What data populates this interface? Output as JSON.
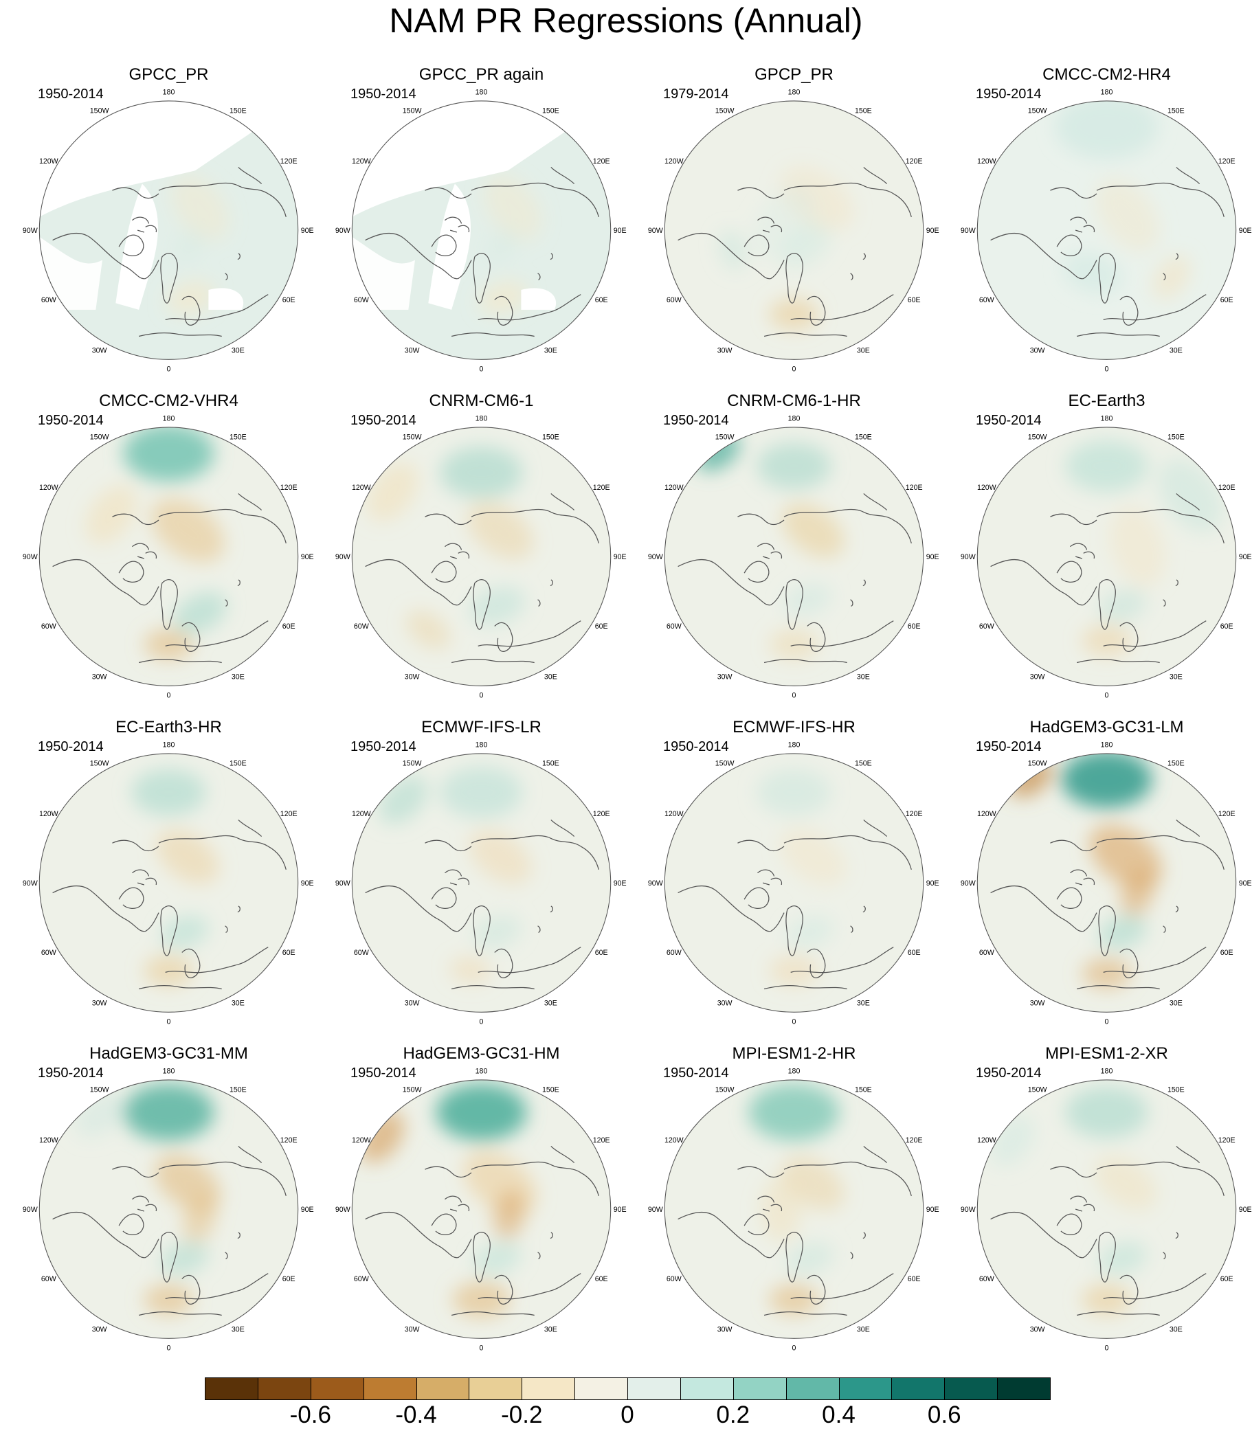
{
  "figure": {
    "title": "NAM PR Regressions (Annual)"
  },
  "longitude_labels": [
    "180",
    "150E",
    "120E",
    "90E",
    "60E",
    "30E",
    "0",
    "30W",
    "60W",
    "90W",
    "120W",
    "150W"
  ],
  "palette": {
    "brown_darkest": "#5a3208",
    "land_coast": "#555555",
    "missing": "#ffffff",
    "neutral": "#f4f1e4"
  },
  "panels": [
    {
      "title": "GPCC_PR",
      "period": "1950-2014",
      "ocean_missing": true,
      "base": "#e3efe9",
      "blobs": [
        [
          0.15,
          0.3,
          0.18,
          0.4,
          "#f5e7c6"
        ],
        [
          0.45,
          0.55,
          0.12,
          0.6,
          "#f5e7c6"
        ],
        [
          0.35,
          0.2,
          0.1,
          0.3,
          "#cfe8df"
        ]
      ]
    },
    {
      "title": "GPCC_PR again",
      "period": "1950-2014",
      "ocean_missing": true,
      "base": "#e3efe9",
      "blobs": [
        [
          0.15,
          0.3,
          0.18,
          0.4,
          "#f5e7c6"
        ],
        [
          0.45,
          0.55,
          0.12,
          0.6,
          "#f5e7c6"
        ],
        [
          0.35,
          0.2,
          0.1,
          0.3,
          "#cfe8df"
        ]
      ]
    },
    {
      "title": "GPCP_PR",
      "period": "1979-2014",
      "ocean_missing": false,
      "base": "#eef1e8",
      "blobs": [
        [
          0.1,
          0.3,
          0.2,
          0.4,
          "#f3e2bd"
        ],
        [
          0.5,
          0.65,
          0.12,
          0.6,
          "#e9cd98"
        ],
        [
          0.85,
          0.1,
          0.2,
          0.3,
          "#d4ece4"
        ],
        [
          0.4,
          0.15,
          0.14,
          0.45,
          "#cfe8e0"
        ],
        [
          0.7,
          0.5,
          0.1,
          0.5,
          "#c7e6dc"
        ]
      ]
    },
    {
      "title": "CMCC-CM2-HR4",
      "period": "1950-2014",
      "ocean_missing": false,
      "base": "#eaf2ec",
      "blobs": [
        [
          0.0,
          0.8,
          0.25,
          0.5,
          "#c6e6dd"
        ],
        [
          0.15,
          0.2,
          0.2,
          0.4,
          "#f3e4c3"
        ],
        [
          0.55,
          0.35,
          0.15,
          0.6,
          "#d0eae2"
        ],
        [
          0.35,
          0.62,
          0.12,
          0.5,
          "#f3e2bd"
        ]
      ]
    },
    {
      "title": "CMCC-CM2-VHR4",
      "period": "1950-2014",
      "ocean_missing": false,
      "base": "#eef1e8",
      "blobs": [
        [
          0.0,
          0.8,
          0.22,
          0.9,
          "#7cc6b6"
        ],
        [
          0.1,
          0.25,
          0.2,
          0.6,
          "#e7c892"
        ],
        [
          0.42,
          0.5,
          0.14,
          0.6,
          "#a9d9cc"
        ],
        [
          0.5,
          0.68,
          0.12,
          0.6,
          "#e3bd82"
        ],
        [
          0.85,
          0.55,
          0.16,
          0.5,
          "#f2deb4"
        ]
      ]
    },
    {
      "title": "CNRM-CM6-1",
      "period": "1950-2014",
      "ocean_missing": false,
      "base": "#eef1e8",
      "blobs": [
        [
          0.0,
          0.65,
          0.2,
          0.6,
          "#a2d6c8"
        ],
        [
          0.1,
          0.25,
          0.18,
          0.5,
          "#ecd2a2"
        ],
        [
          0.45,
          0.4,
          0.14,
          0.6,
          "#c1e3d9"
        ],
        [
          0.6,
          0.7,
          0.12,
          0.5,
          "#ecd5a8"
        ],
        [
          0.85,
          0.85,
          0.16,
          0.5,
          "#f2deb4"
        ]
      ]
    },
    {
      "title": "CNRM-CM6-1-HR",
      "period": "1950-2014",
      "ocean_missing": false,
      "base": "#eef1e8",
      "blobs": [
        [
          0.0,
          0.7,
          0.18,
          0.6,
          "#a6d7ca"
        ],
        [
          0.1,
          0.25,
          0.17,
          0.55,
          "#e9cd98"
        ],
        [
          0.9,
          1.0,
          0.12,
          0.8,
          "#5bb3a2"
        ],
        [
          0.45,
          0.35,
          0.12,
          0.5,
          "#cde8df"
        ],
        [
          0.5,
          0.68,
          0.12,
          0.5,
          "#eed7ab"
        ]
      ]
    },
    {
      "title": "EC-Earth3",
      "period": "1950-2014",
      "ocean_missing": false,
      "base": "#eef1e8",
      "blobs": [
        [
          0.0,
          0.7,
          0.2,
          0.6,
          "#b6dfd3"
        ],
        [
          0.15,
          0.8,
          0.2,
          0.5,
          "#c7e6dc"
        ],
        [
          0.5,
          0.65,
          0.12,
          0.55,
          "#ecd2a2"
        ],
        [
          0.45,
          0.4,
          0.12,
          0.5,
          "#bfe2d7"
        ],
        [
          0.2,
          0.25,
          0.2,
          0.4,
          "#f3e2bd"
        ]
      ]
    },
    {
      "title": "EC-Earth3-HR",
      "period": "1950-2014",
      "ocean_missing": false,
      "base": "#eef1e8",
      "blobs": [
        [
          0.0,
          0.7,
          0.18,
          0.6,
          "#a9d9cc"
        ],
        [
          0.1,
          0.25,
          0.17,
          0.55,
          "#ecd2a2"
        ],
        [
          0.45,
          0.4,
          0.12,
          0.6,
          "#b6dfd3"
        ],
        [
          0.5,
          0.68,
          0.12,
          0.6,
          "#e9cd98"
        ]
      ]
    },
    {
      "title": "ECMWF-IFS-LR",
      "period": "1950-2014",
      "ocean_missing": false,
      "base": "#eef1e8",
      "blobs": [
        [
          0.0,
          0.7,
          0.2,
          0.6,
          "#b9e0d5"
        ],
        [
          0.1,
          0.25,
          0.17,
          0.5,
          "#efd8ad"
        ],
        [
          0.88,
          0.88,
          0.14,
          0.6,
          "#b0dccf"
        ],
        [
          0.45,
          0.4,
          0.12,
          0.5,
          "#c7e6dc"
        ],
        [
          0.52,
          0.68,
          0.1,
          0.5,
          "#efd8ad"
        ]
      ]
    },
    {
      "title": "ECMWF-IFS-HR",
      "period": "1950-2014",
      "ocean_missing": false,
      "base": "#eef1e8",
      "blobs": [
        [
          0.0,
          0.7,
          0.18,
          0.5,
          "#c7e6dc"
        ],
        [
          0.1,
          0.25,
          0.18,
          0.4,
          "#f3e2bd"
        ],
        [
          0.45,
          0.4,
          0.12,
          0.5,
          "#d0eae2"
        ],
        [
          0.5,
          0.68,
          0.12,
          0.5,
          "#efd8ad"
        ]
      ]
    },
    {
      "title": "HadGEM3-GC31-LM",
      "period": "1950-2014",
      "ocean_missing": false,
      "base": "#eef1e8",
      "blobs": [
        [
          0.0,
          0.8,
          0.22,
          1.0,
          "#4ea79a"
        ],
        [
          0.1,
          0.25,
          0.2,
          0.7,
          "#deb077"
        ],
        [
          0.3,
          0.25,
          0.12,
          0.6,
          "#dcab70"
        ],
        [
          0.9,
          1.0,
          0.12,
          0.8,
          "#cc9a5e"
        ],
        [
          0.45,
          0.4,
          0.12,
          0.6,
          "#a9d9cc"
        ],
        [
          0.5,
          0.7,
          0.12,
          0.6,
          "#e0b47a"
        ]
      ]
    },
    {
      "title": "HadGEM3-GC31-MM",
      "period": "1950-2014",
      "ocean_missing": false,
      "base": "#eef1e8",
      "blobs": [
        [
          0.0,
          0.75,
          0.22,
          1.0,
          "#6fbdac"
        ],
        [
          0.1,
          0.25,
          0.18,
          0.6,
          "#e3bd82"
        ],
        [
          0.3,
          0.25,
          0.12,
          0.5,
          "#e3bd82"
        ],
        [
          0.45,
          0.4,
          0.12,
          0.6,
          "#b0dccf"
        ],
        [
          0.5,
          0.7,
          0.12,
          0.6,
          "#e3bd82"
        ],
        [
          0.9,
          0.9,
          0.14,
          0.5,
          "#cfe8df"
        ]
      ]
    },
    {
      "title": "HadGEM3-GC31-HM",
      "period": "1950-2014",
      "ocean_missing": false,
      "base": "#eef1e8",
      "blobs": [
        [
          0.0,
          0.75,
          0.22,
          1.0,
          "#64b8a6"
        ],
        [
          0.1,
          0.25,
          0.2,
          0.6,
          "#eccf9c"
        ],
        [
          0.28,
          0.22,
          0.12,
          0.6,
          "#dcab70"
        ],
        [
          0.85,
          0.95,
          0.14,
          0.7,
          "#d9a86c"
        ],
        [
          0.45,
          0.4,
          0.12,
          0.5,
          "#b6dfd3"
        ],
        [
          0.5,
          0.7,
          0.14,
          0.6,
          "#e3bd82"
        ]
      ]
    },
    {
      "title": "MPI-ESM1-2-HR",
      "period": "1950-2014",
      "ocean_missing": false,
      "base": "#eef1e8",
      "blobs": [
        [
          0.0,
          0.75,
          0.22,
          0.9,
          "#8dcdbd"
        ],
        [
          0.1,
          0.25,
          0.17,
          0.5,
          "#ecd2a2"
        ],
        [
          0.45,
          0.4,
          0.12,
          0.5,
          "#c7e6dc"
        ],
        [
          0.5,
          0.7,
          0.12,
          0.6,
          "#e3bd82"
        ],
        [
          0.75,
          0.1,
          0.16,
          0.4,
          "#f0dcb1"
        ]
      ]
    },
    {
      "title": "MPI-ESM1-2-XR",
      "period": "1950-2014",
      "ocean_missing": false,
      "base": "#eef1e8",
      "blobs": [
        [
          0.0,
          0.75,
          0.2,
          0.7,
          "#b0dccf"
        ],
        [
          0.1,
          0.25,
          0.17,
          0.4,
          "#f0dcb1"
        ],
        [
          0.45,
          0.4,
          0.12,
          0.5,
          "#b6dfd3"
        ],
        [
          0.5,
          0.7,
          0.12,
          0.6,
          "#e9cd98"
        ],
        [
          0.85,
          0.9,
          0.14,
          0.5,
          "#d0eae2"
        ]
      ]
    }
  ],
  "colorbar": {
    "colors": [
      "#5a3208",
      "#7b4510",
      "#9c5b1b",
      "#bd7c31",
      "#d6ad68",
      "#e8cf96",
      "#f5e7c6",
      "#f4f1e4",
      "#e3efea",
      "#c4e8df",
      "#93d3c4",
      "#62b8a8",
      "#2c978a",
      "#12766b",
      "#075a4f",
      "#003b31"
    ],
    "tick_labels": [
      "-0.6",
      "-0.4",
      "-0.2",
      "0",
      "0.2",
      "0.4",
      "0.6"
    ],
    "tick_values": [
      -0.6,
      -0.4,
      -0.2,
      0,
      0.2,
      0.4,
      0.6
    ],
    "range": [
      -0.8,
      0.8
    ]
  }
}
